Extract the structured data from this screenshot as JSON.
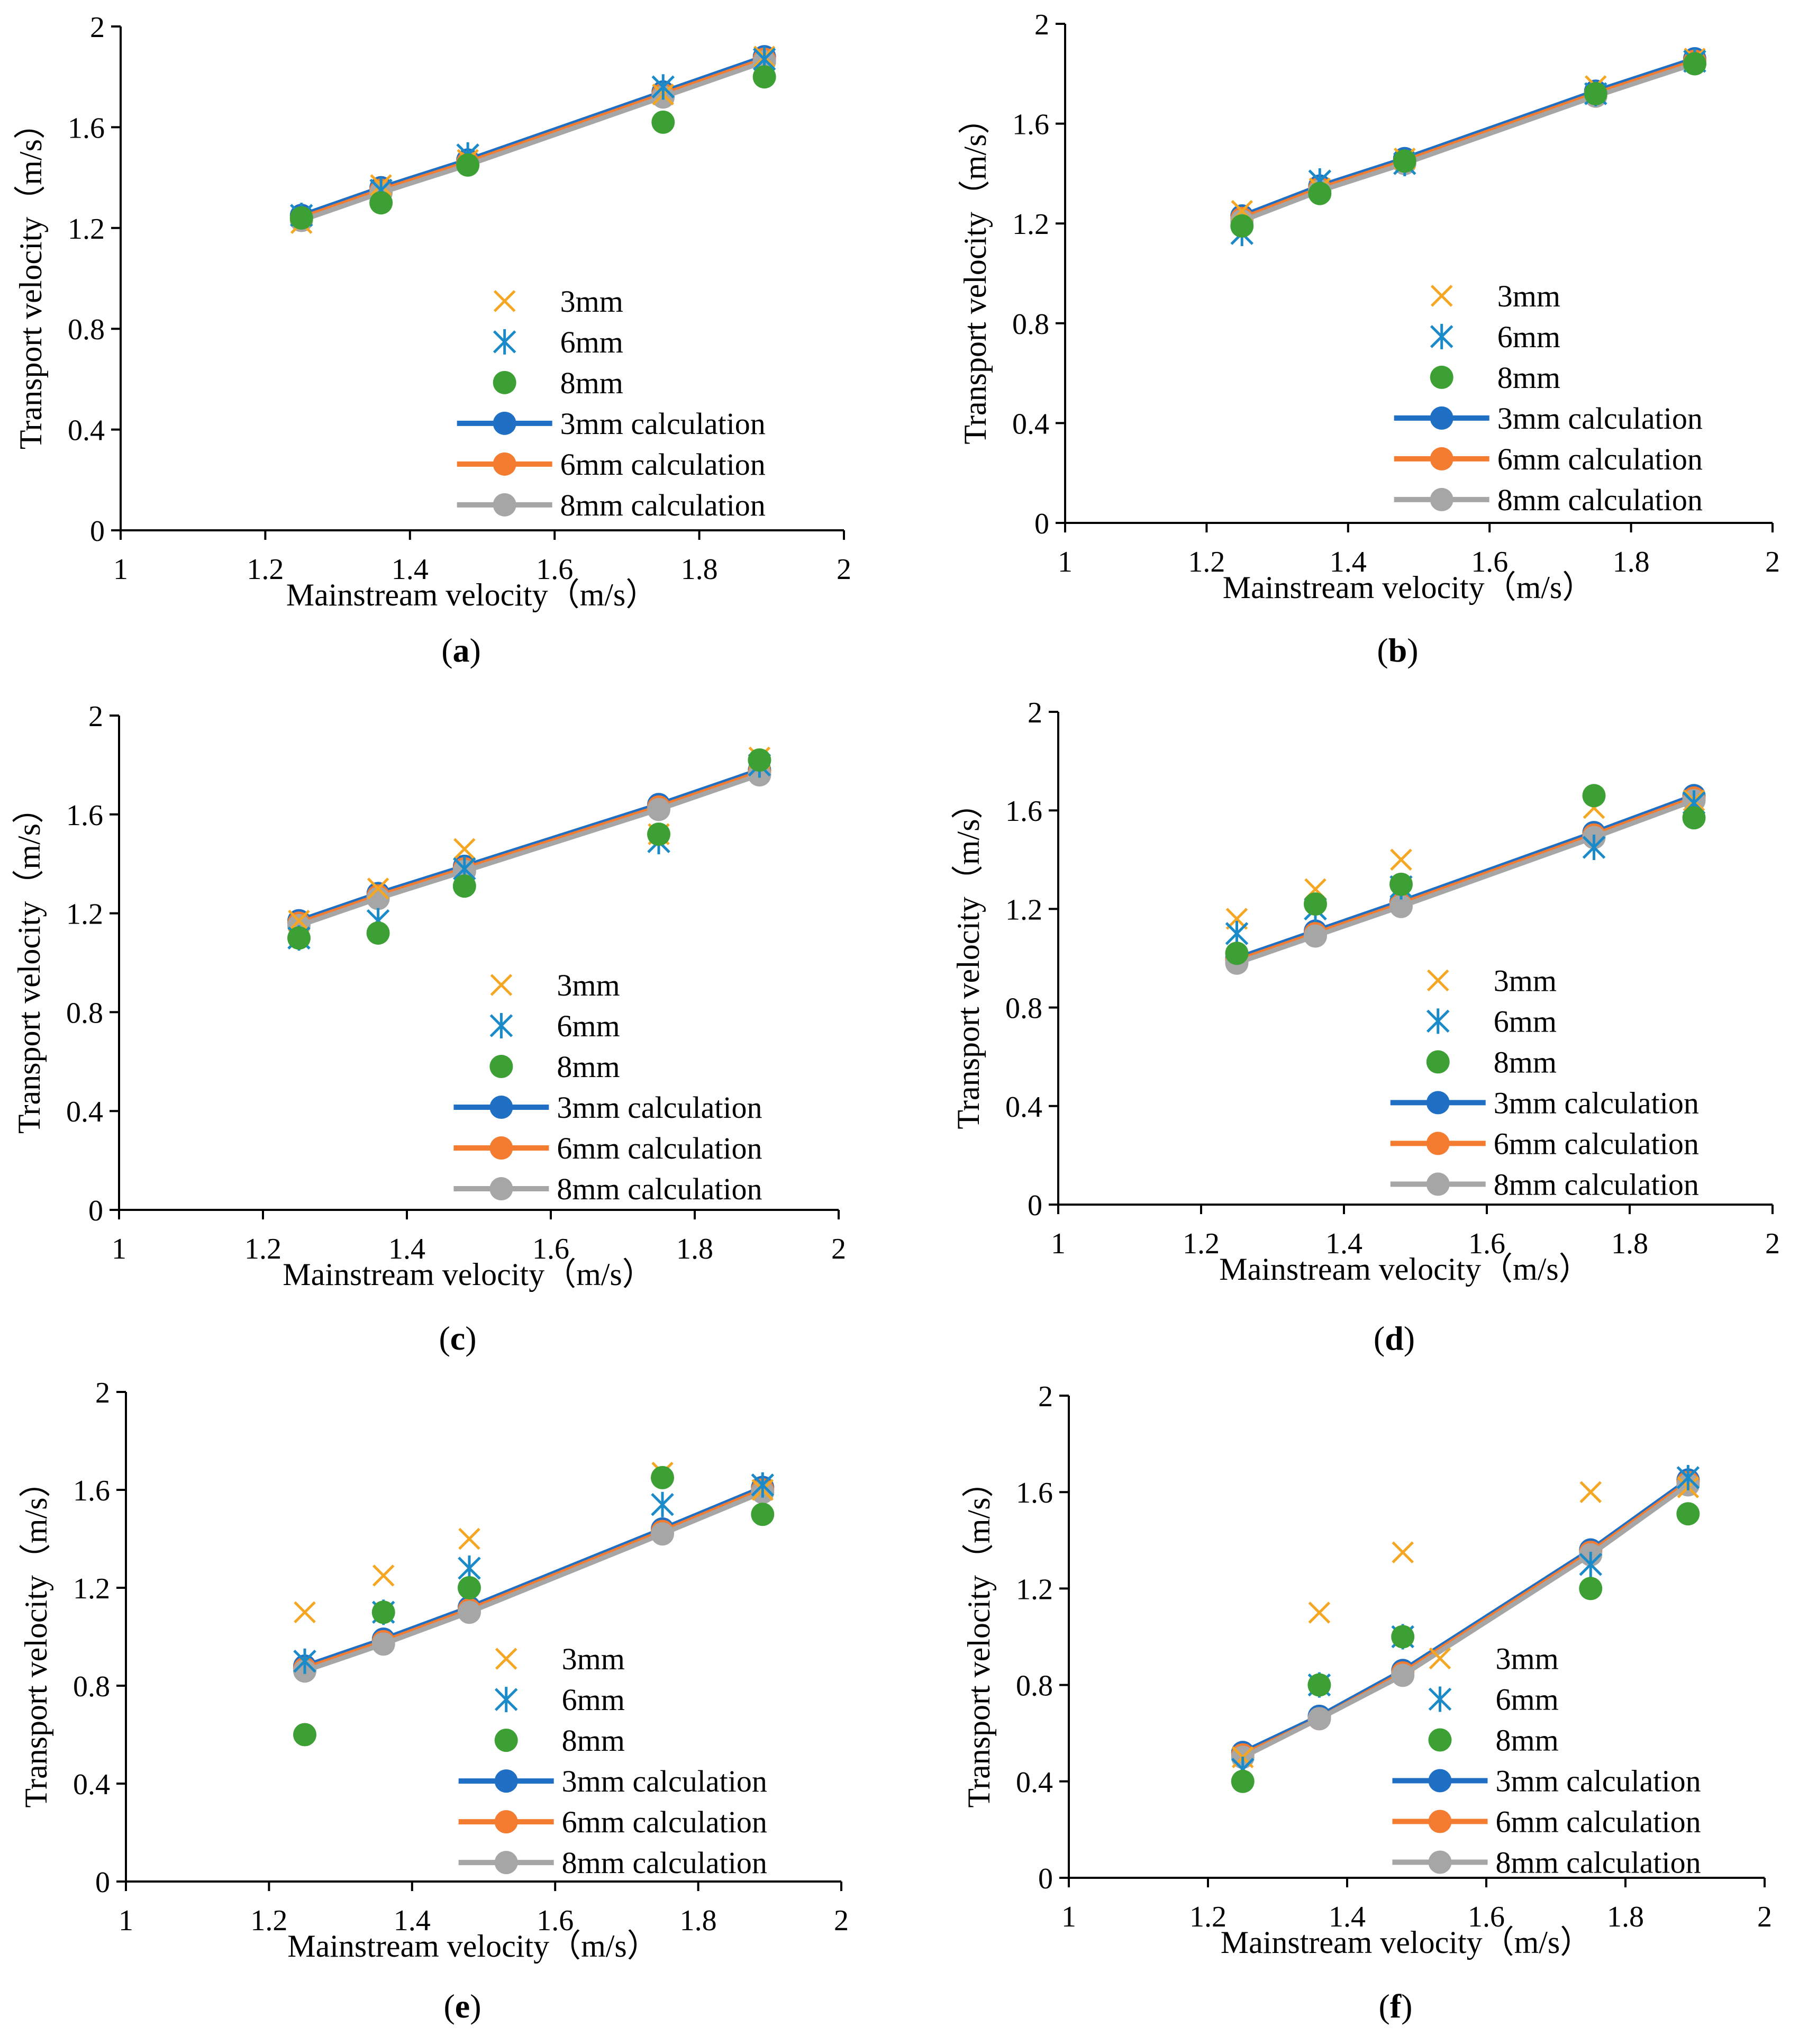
{
  "figure": {
    "colors": {
      "3mm": "#F5A623",
      "6mm": "#1B8AC8",
      "8mm": "#3DA035",
      "3mm_calc": "#1F6FC5",
      "6mm_calc": "#F47C30",
      "8mm_calc": "#A6A6A6",
      "axis": "#000000"
    }
  },
  "chart_data": [
    {
      "panel": "(a)",
      "type": "scatter",
      "xlabel": "Mainstream velocity（m/s）",
      "ylabel": "Transport velocity（m/s）",
      "xlim": [
        1,
        2
      ],
      "ylim": [
        0,
        2
      ],
      "xticks": [
        "1",
        "1.2",
        "1.4",
        "1.6",
        "1.8",
        "2"
      ],
      "yticks": [
        "0",
        "0.4",
        "0.8",
        "1.2",
        "1.6",
        "2"
      ],
      "legend_position": "lower-right",
      "x": [
        1.25,
        1.36,
        1.48,
        1.75,
        1.89
      ],
      "series": [
        {
          "name": "3mm",
          "kind": "cross",
          "values": [
            1.22,
            1.37,
            1.47,
            1.73,
            1.88
          ]
        },
        {
          "name": "6mm",
          "kind": "asterisk",
          "values": [
            1.25,
            1.35,
            1.49,
            1.76,
            1.87
          ]
        },
        {
          "name": "8mm",
          "kind": "dot",
          "values": [
            1.24,
            1.3,
            1.45,
            1.62,
            1.8
          ]
        },
        {
          "name": "3mm calculation",
          "kind": "line",
          "values": [
            1.25,
            1.36,
            1.47,
            1.74,
            1.88
          ]
        },
        {
          "name": "6mm calculation",
          "kind": "line",
          "values": [
            1.24,
            1.35,
            1.46,
            1.73,
            1.87
          ]
        },
        {
          "name": "8mm calculation",
          "kind": "line",
          "values": [
            1.23,
            1.34,
            1.45,
            1.72,
            1.86
          ]
        }
      ]
    },
    {
      "panel": "(b)",
      "type": "scatter",
      "xlabel": "Mainstream velocity（m/s）",
      "ylabel": "Transport velocity（m/s）",
      "xlim": [
        1,
        2
      ],
      "ylim": [
        0,
        2
      ],
      "xticks": [
        "1",
        "1.2",
        "1.4",
        "1.6",
        "1.8",
        "2"
      ],
      "yticks": [
        "0",
        "0.4",
        "0.8",
        "1.2",
        "1.6",
        "2"
      ],
      "legend_position": "lower-right",
      "x": [
        1.25,
        1.36,
        1.48,
        1.75,
        1.89
      ],
      "series": [
        {
          "name": "3mm",
          "kind": "cross",
          "values": [
            1.25,
            1.34,
            1.46,
            1.75,
            1.86
          ]
        },
        {
          "name": "6mm",
          "kind": "asterisk",
          "values": [
            1.16,
            1.37,
            1.44,
            1.72,
            1.85
          ]
        },
        {
          "name": "8mm",
          "kind": "dot",
          "values": [
            1.19,
            1.32,
            1.45,
            1.72,
            1.84
          ]
        },
        {
          "name": "3mm calculation",
          "kind": "line",
          "values": [
            1.23,
            1.35,
            1.46,
            1.73,
            1.86
          ]
        },
        {
          "name": "6mm calculation",
          "kind": "line",
          "values": [
            1.22,
            1.34,
            1.45,
            1.72,
            1.85
          ]
        },
        {
          "name": "8mm calculation",
          "kind": "line",
          "values": [
            1.21,
            1.33,
            1.44,
            1.71,
            1.84
          ]
        }
      ]
    },
    {
      "panel": "(c)",
      "type": "scatter",
      "xlabel": "Mainstream velocity（m/s）",
      "ylabel": "Transport velocity（m/s）",
      "xlim": [
        1,
        2
      ],
      "ylim": [
        0,
        2
      ],
      "xticks": [
        "1",
        "1.2",
        "1.4",
        "1.6",
        "1.8",
        "2"
      ],
      "yticks": [
        "0",
        "0.4",
        "0.8",
        "1.2",
        "1.6",
        "2"
      ],
      "legend_position": "lower-right",
      "x": [
        1.25,
        1.36,
        1.48,
        1.75,
        1.89
      ],
      "series": [
        {
          "name": "3mm",
          "kind": "cross",
          "values": [
            1.17,
            1.3,
            1.46,
            1.52,
            1.83
          ]
        },
        {
          "name": "6mm",
          "kind": "asterisk",
          "values": [
            1.1,
            1.17,
            1.38,
            1.49,
            1.8
          ]
        },
        {
          "name": "8mm",
          "kind": "dot",
          "values": [
            1.1,
            1.12,
            1.31,
            1.52,
            1.82
          ]
        },
        {
          "name": "3mm calculation",
          "kind": "line",
          "values": [
            1.17,
            1.28,
            1.39,
            1.64,
            1.78
          ]
        },
        {
          "name": "6mm calculation",
          "kind": "line",
          "values": [
            1.16,
            1.27,
            1.38,
            1.63,
            1.77
          ]
        },
        {
          "name": "8mm calculation",
          "kind": "line",
          "values": [
            1.15,
            1.26,
            1.37,
            1.62,
            1.76
          ]
        }
      ]
    },
    {
      "panel": "(d)",
      "type": "scatter",
      "xlabel": "Mainstream velocity（m/s）",
      "ylabel": "Transport velocity（m/s）",
      "xlim": [
        1,
        2
      ],
      "ylim": [
        0,
        2
      ],
      "xticks": [
        "1",
        "1.2",
        "1.4",
        "1.6",
        "1.8",
        "2"
      ],
      "yticks": [
        "0",
        "0.4",
        "0.8",
        "1.2",
        "1.6",
        "2"
      ],
      "legend_position": "lower-right",
      "x": [
        1.25,
        1.36,
        1.48,
        1.75,
        1.89
      ],
      "series": [
        {
          "name": "3mm",
          "kind": "cross",
          "values": [
            1.16,
            1.28,
            1.4,
            1.61,
            1.64
          ]
        },
        {
          "name": "6mm",
          "kind": "asterisk",
          "values": [
            1.1,
            1.2,
            1.29,
            1.45,
            1.63
          ]
        },
        {
          "name": "8mm",
          "kind": "dot",
          "values": [
            1.02,
            1.22,
            1.3,
            1.66,
            1.57
          ]
        },
        {
          "name": "3mm calculation",
          "kind": "line",
          "values": [
            1.0,
            1.11,
            1.23,
            1.51,
            1.66
          ]
        },
        {
          "name": "6mm calculation",
          "kind": "line",
          "values": [
            0.99,
            1.1,
            1.22,
            1.5,
            1.65
          ]
        },
        {
          "name": "8mm calculation",
          "kind": "line",
          "values": [
            0.98,
            1.09,
            1.21,
            1.49,
            1.64
          ]
        }
      ]
    },
    {
      "panel": "(e)",
      "type": "scatter",
      "xlabel": "Mainstream velocity（m/s）",
      "ylabel": "Transport velocity（m/s）",
      "xlim": [
        1,
        2
      ],
      "ylim": [
        0,
        2
      ],
      "xticks": [
        "1",
        "1.2",
        "1.4",
        "1.6",
        "1.8",
        "2"
      ],
      "yticks": [
        "0",
        "0.4",
        "0.8",
        "1.2",
        "1.6",
        "2"
      ],
      "legend_position": "lower-right",
      "x": [
        1.25,
        1.36,
        1.48,
        1.75,
        1.89
      ],
      "series": [
        {
          "name": "3mm",
          "kind": "cross",
          "values": [
            1.1,
            1.25,
            1.4,
            1.67,
            1.6
          ]
        },
        {
          "name": "6mm",
          "kind": "asterisk",
          "values": [
            0.9,
            1.1,
            1.28,
            1.54,
            1.62
          ]
        },
        {
          "name": "8mm",
          "kind": "dot",
          "values": [
            0.6,
            1.1,
            1.2,
            1.65,
            1.5
          ]
        },
        {
          "name": "3mm calculation",
          "kind": "line",
          "values": [
            0.88,
            0.99,
            1.12,
            1.44,
            1.61
          ]
        },
        {
          "name": "6mm calculation",
          "kind": "line",
          "values": [
            0.87,
            0.98,
            1.11,
            1.43,
            1.6
          ]
        },
        {
          "name": "8mm calculation",
          "kind": "line",
          "values": [
            0.86,
            0.97,
            1.1,
            1.42,
            1.59
          ]
        }
      ]
    },
    {
      "panel": "(f)",
      "type": "scatter",
      "xlabel": "Mainstream velocity（m/s）",
      "ylabel": "Transport velocity（m/s）",
      "xlim": [
        1,
        2
      ],
      "ylim": [
        0,
        2
      ],
      "xticks": [
        "1",
        "1.2",
        "1.4",
        "1.6",
        "1.8",
        "2"
      ],
      "yticks": [
        "0",
        "0.4",
        "0.8",
        "1.2",
        "1.6",
        "2"
      ],
      "legend_position": "lower-right",
      "x": [
        1.25,
        1.36,
        1.48,
        1.75,
        1.89
      ],
      "series": [
        {
          "name": "3mm",
          "kind": "cross",
          "values": [
            0.5,
            1.1,
            1.35,
            1.6,
            1.62
          ]
        },
        {
          "name": "6mm",
          "kind": "asterisk",
          "values": [
            0.45,
            0.8,
            1.0,
            1.3,
            1.66
          ]
        },
        {
          "name": "8mm",
          "kind": "dot",
          "values": [
            0.4,
            0.8,
            1.0,
            1.2,
            1.51
          ]
        },
        {
          "name": "3mm calculation",
          "kind": "line",
          "values": [
            0.52,
            0.67,
            0.86,
            1.36,
            1.65
          ]
        },
        {
          "name": "6mm calculation",
          "kind": "line",
          "values": [
            0.51,
            0.66,
            0.85,
            1.35,
            1.64
          ]
        },
        {
          "name": "8mm calculation",
          "kind": "line",
          "values": [
            0.5,
            0.66,
            0.84,
            1.34,
            1.63
          ]
        }
      ]
    }
  ]
}
